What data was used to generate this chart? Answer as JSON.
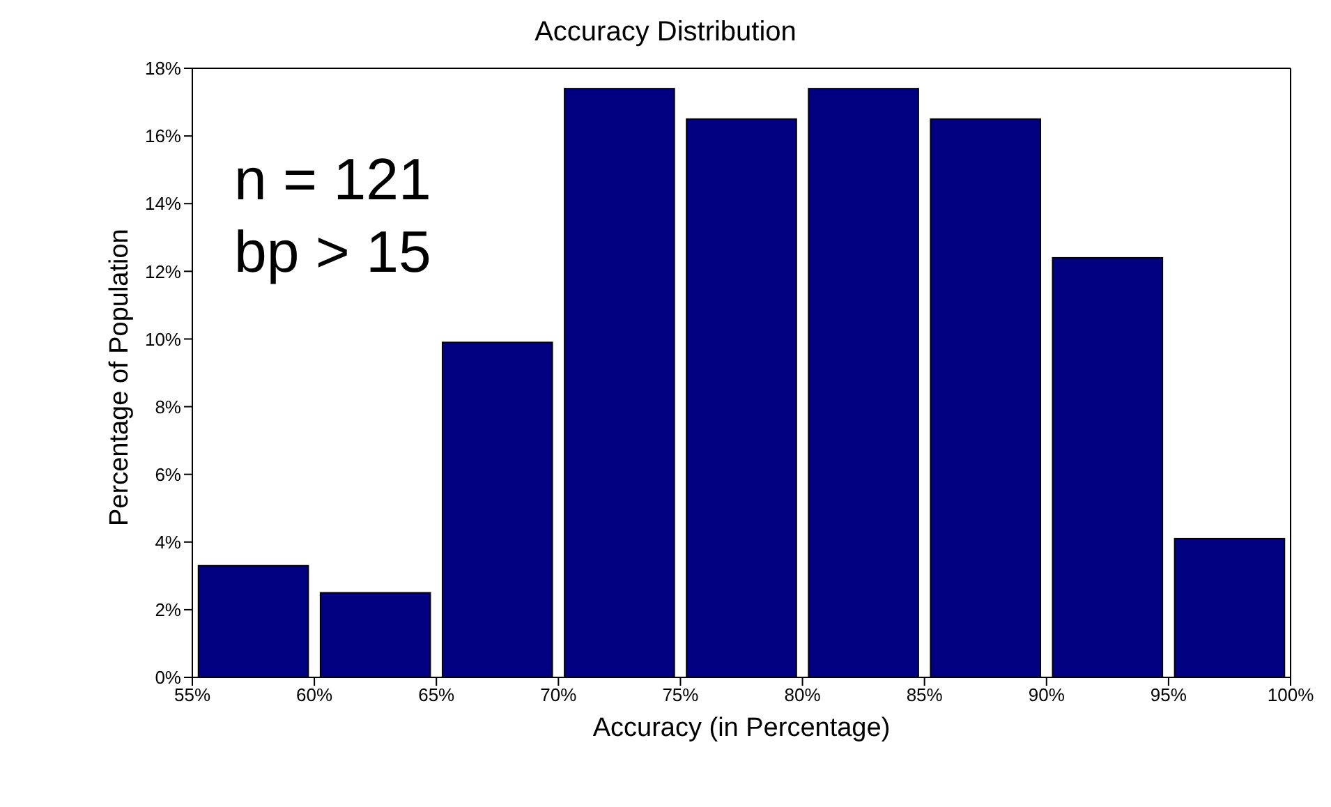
{
  "chart_data": {
    "type": "histogram",
    "title": "Accuracy Distribution",
    "xlabel": "Accuracy (in Percentage)",
    "ylabel": "Percentage of Population",
    "bins": [
      55,
      60,
      65,
      70,
      75,
      80,
      85,
      90,
      95,
      100
    ],
    "values": [
      3.3,
      2.5,
      9.9,
      17.4,
      16.5,
      17.4,
      16.5,
      12.4,
      4.1
    ],
    "color": "#000080",
    "xlim": [
      55,
      100
    ],
    "xticks": [
      {
        "value": 55,
        "label": "55%"
      },
      {
        "value": 60,
        "label": "60%"
      },
      {
        "value": 65,
        "label": "65%"
      },
      {
        "value": 70,
        "label": "70%"
      },
      {
        "value": 75,
        "label": "75%"
      },
      {
        "value": 80,
        "label": "80%"
      },
      {
        "value": 85,
        "label": "85%"
      },
      {
        "value": 90,
        "label": "90%"
      },
      {
        "value": 95,
        "label": "95%"
      },
      {
        "value": 100,
        "label": "100%"
      }
    ],
    "ylim": [
      0,
      18
    ],
    "yticks": [
      {
        "value": 0,
        "label": "0%"
      },
      {
        "value": 2,
        "label": "2%"
      },
      {
        "value": 4,
        "label": "4%"
      },
      {
        "value": 6,
        "label": "6%"
      },
      {
        "value": 8,
        "label": "8%"
      },
      {
        "value": 10,
        "label": "10%"
      },
      {
        "value": 12,
        "label": "12%"
      },
      {
        "value": 14,
        "label": "14%"
      },
      {
        "value": 16,
        "label": "16%"
      },
      {
        "value": 18,
        "label": "18%"
      }
    ],
    "annotations": [
      "n = 121",
      "bp > 15"
    ],
    "grid": false,
    "legend": false
  }
}
